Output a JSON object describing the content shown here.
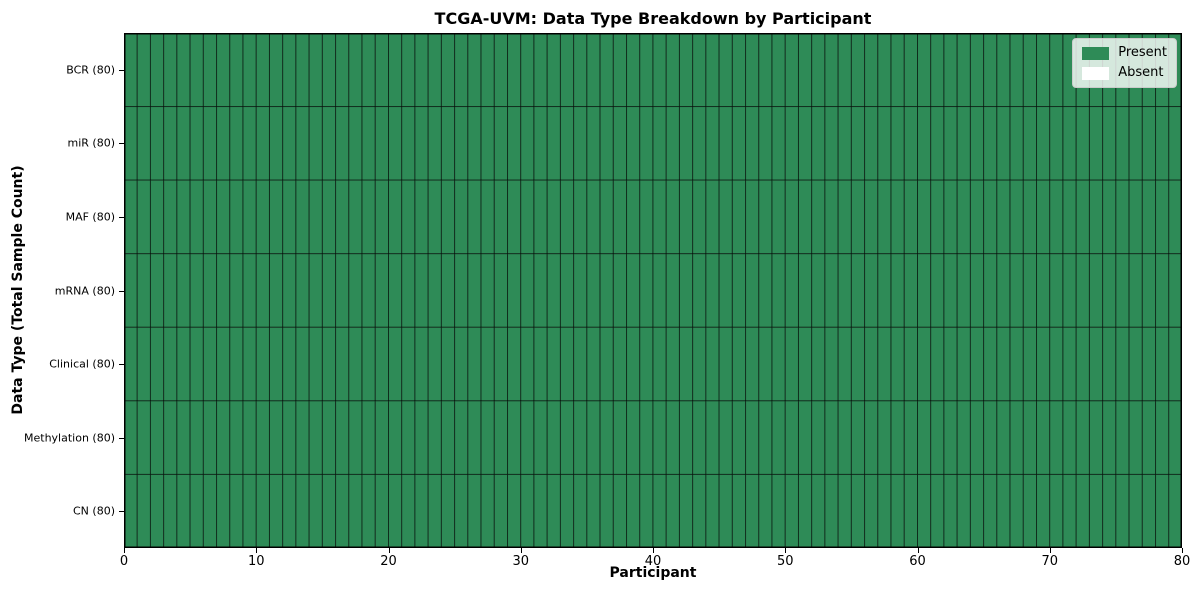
{
  "chart_data": {
    "type": "heatmap",
    "title": "TCGA-UVM: Data Type Breakdown by Participant",
    "xlabel": "Participant",
    "ylabel": "Data Type (Total Sample Count)",
    "rows": [
      {
        "label": "BCR (80)",
        "present_count": 80
      },
      {
        "label": "miR (80)",
        "present_count": 80
      },
      {
        "label": "MAF (80)",
        "present_count": 80
      },
      {
        "label": "mRNA (80)",
        "present_count": 80
      },
      {
        "label": "Clinical (80)",
        "present_count": 80
      },
      {
        "label": "Methylation (80)",
        "present_count": 80
      },
      {
        "label": "CN (80)",
        "present_count": 80
      }
    ],
    "n_participants": 80,
    "xlim": [
      0,
      80
    ],
    "x_ticks": [
      0,
      10,
      20,
      30,
      40,
      50,
      60,
      70,
      80
    ],
    "grid": true,
    "legend": {
      "position": "upper-right",
      "entries": [
        {
          "label": "Present",
          "color": "#2E8B57"
        },
        {
          "label": "Absent",
          "color": "#FFFFFF"
        }
      ]
    },
    "colors": {
      "present": "#2E8B57",
      "absent": "#FFFFFF",
      "cell_edge": "rgba(0,0,0,0.55)",
      "frame": "#000000",
      "text": "#000000"
    }
  }
}
